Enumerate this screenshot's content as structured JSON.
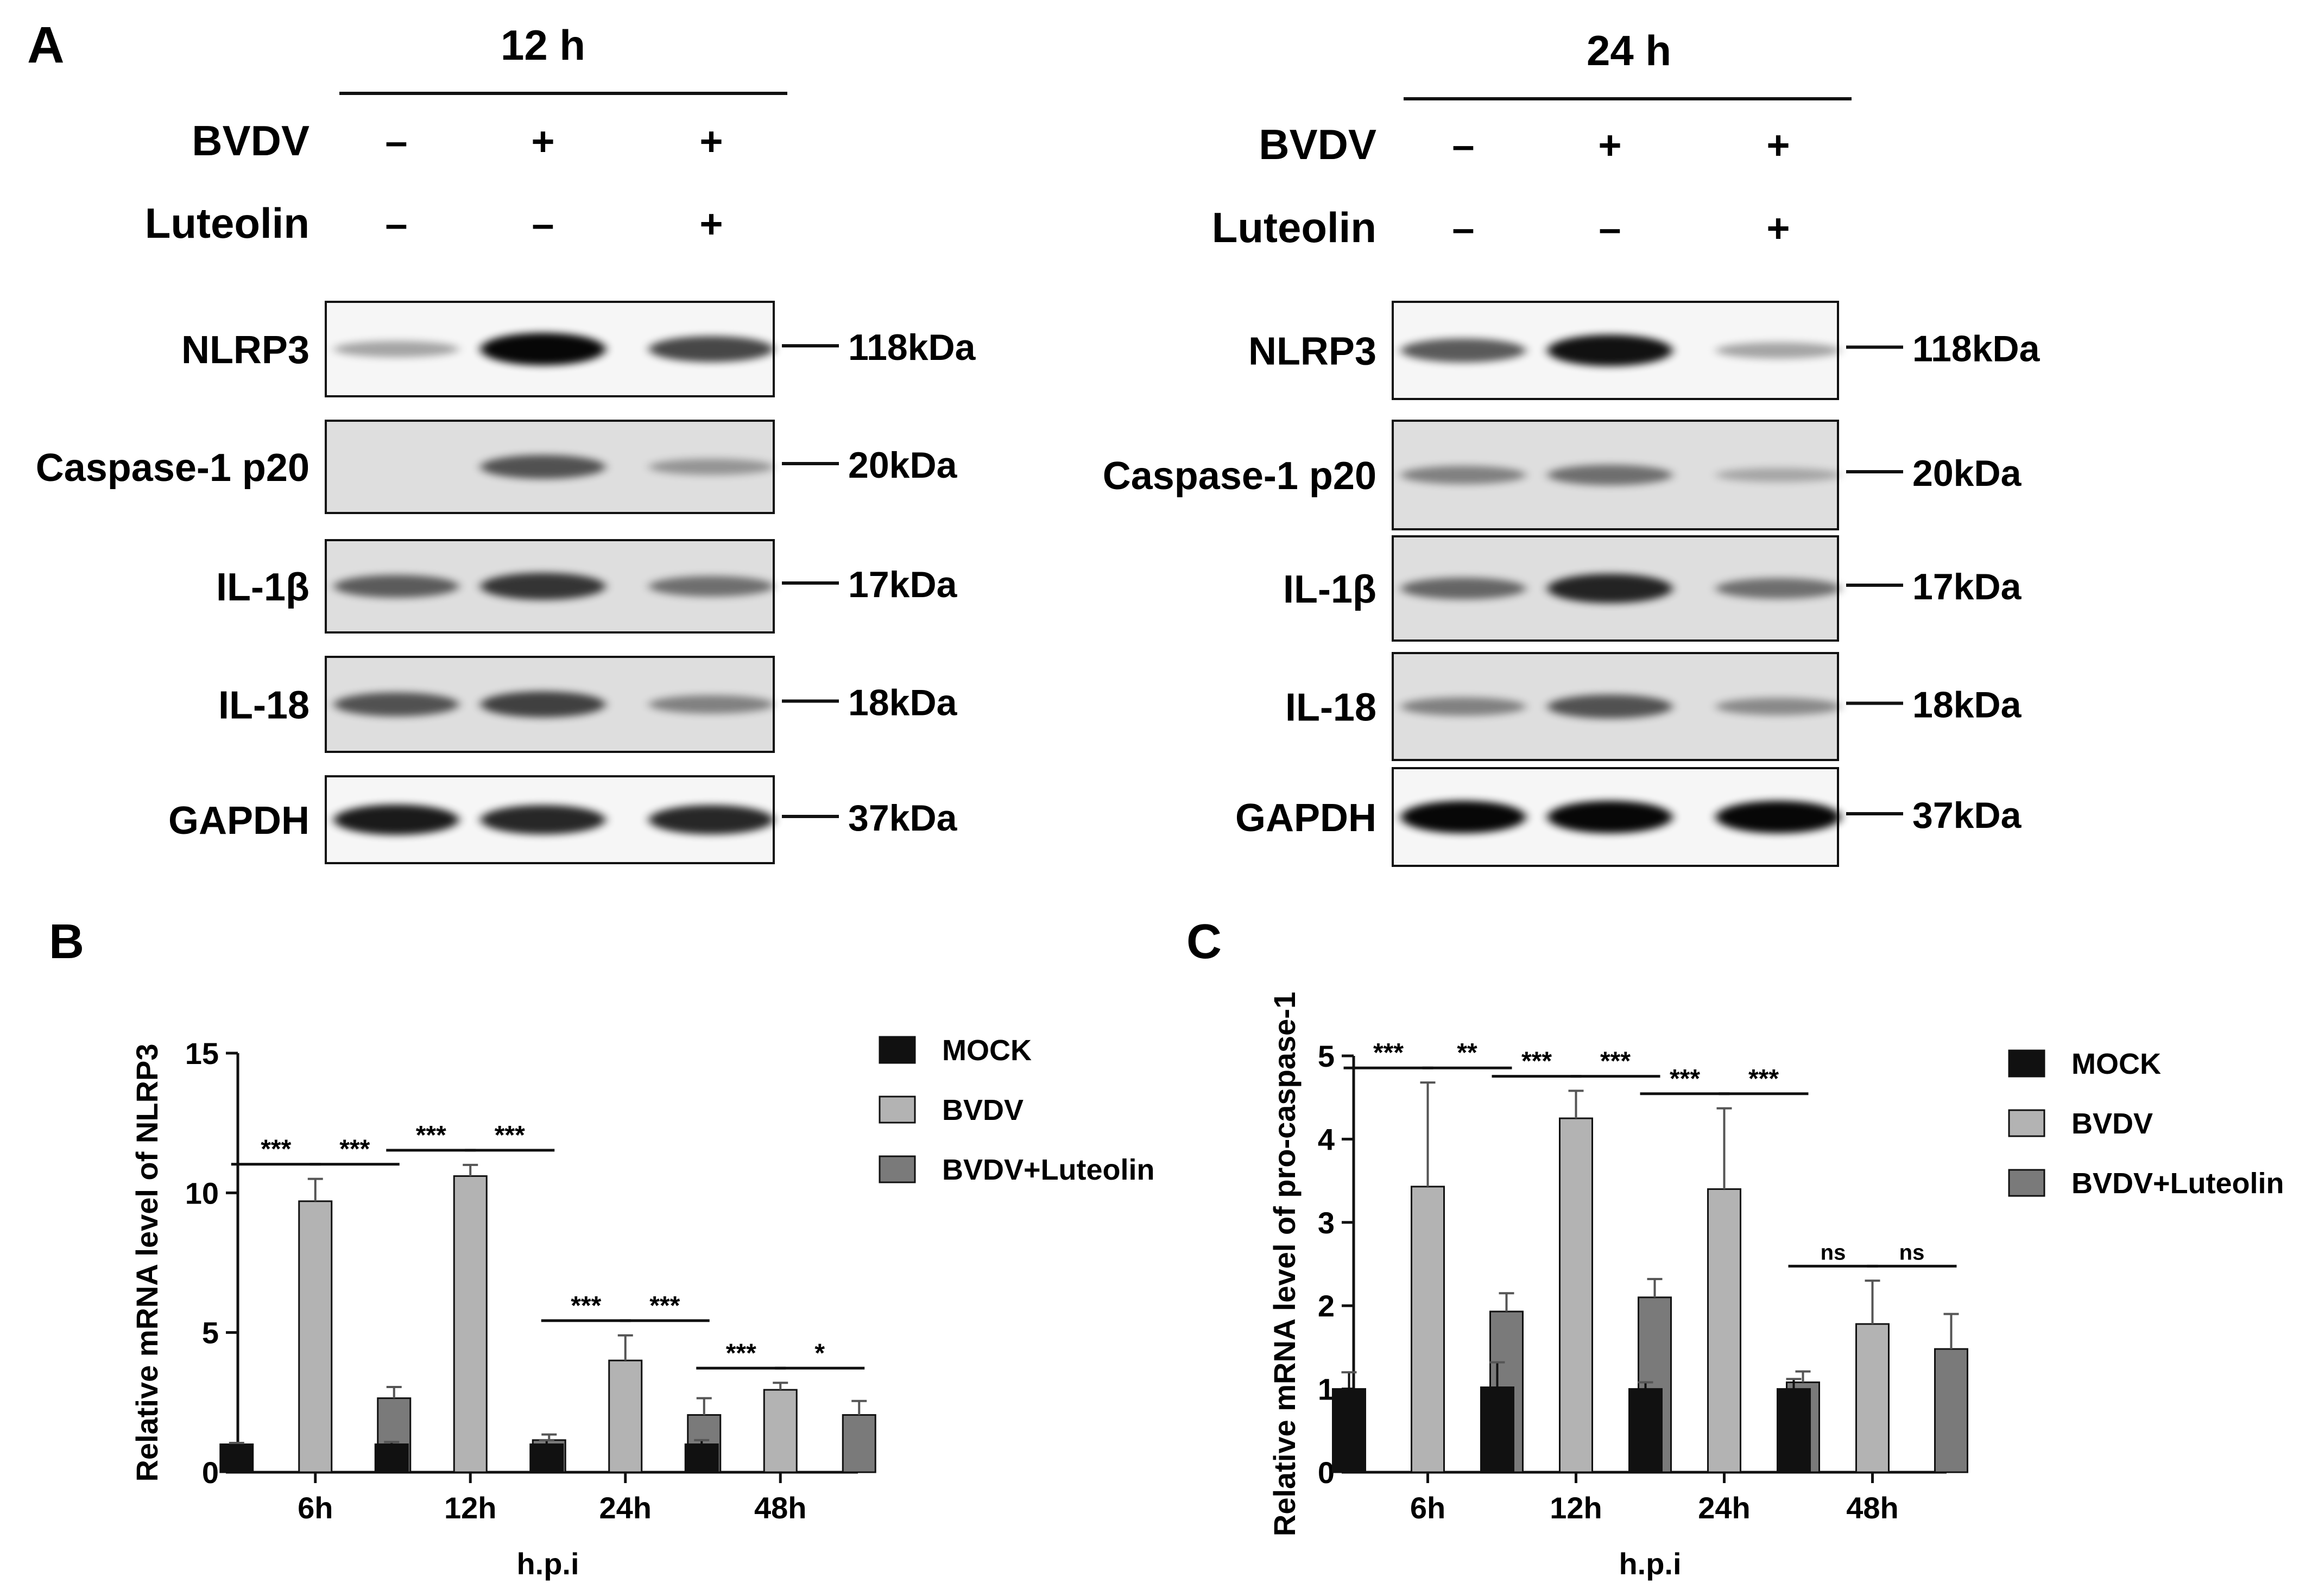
{
  "panelA": {
    "letter": "A",
    "groups": [
      {
        "time": "12 h",
        "rows": [
          {
            "label": "BVDV",
            "signs": [
              "–",
              "+",
              "+"
            ]
          },
          {
            "label": "Luteolin",
            "signs": [
              "–",
              "–",
              "+"
            ]
          }
        ],
        "blots": [
          {
            "protein": "NLRP3",
            "marker": "118kDa",
            "intensity": [
              0.25,
              1.0,
              0.7
            ]
          },
          {
            "protein": "Caspase-1 p20",
            "marker": "20kDa",
            "intensity": [
              0.0,
              0.6,
              0.25
            ]
          },
          {
            "protein": "IL-1β",
            "marker": "17kDa",
            "intensity": [
              0.55,
              0.75,
              0.45
            ]
          },
          {
            "protein": "IL-18",
            "marker": "18kDa",
            "intensity": [
              0.6,
              0.7,
              0.35
            ]
          },
          {
            "protein": "GAPDH",
            "marker": "37kDa",
            "intensity": [
              0.9,
              0.85,
              0.85
            ]
          }
        ]
      },
      {
        "time": "24 h",
        "rows": [
          {
            "label": "BVDV",
            "signs": [
              "–",
              "+",
              "+"
            ]
          },
          {
            "label": "Luteolin",
            "signs": [
              "–",
              "–",
              "+"
            ]
          }
        ],
        "blots": [
          {
            "protein": "NLRP3",
            "marker": "118kDa",
            "intensity": [
              0.6,
              0.95,
              0.25
            ]
          },
          {
            "protein": "Caspase-1 p20",
            "marker": "20kDa",
            "intensity": [
              0.35,
              0.45,
              0.15
            ]
          },
          {
            "protein": "IL-1β",
            "marker": "17kDa",
            "intensity": [
              0.5,
              0.85,
              0.45
            ]
          },
          {
            "protein": "IL-18",
            "marker": "18kDa",
            "intensity": [
              0.35,
              0.6,
              0.3
            ]
          },
          {
            "protein": "GAPDH",
            "marker": "37kDa",
            "intensity": [
              1.0,
              1.0,
              1.0
            ]
          }
        ]
      }
    ]
  },
  "chart_data": [
    {
      "panel": "B",
      "type": "bar",
      "title": "",
      "xlabel": "h.p.i",
      "ylabel": "Relative mRNA level of NLRP3",
      "categories": [
        "6h",
        "12h",
        "24h",
        "48h"
      ],
      "ylim": [
        0,
        15
      ],
      "yticks": [
        0,
        5,
        10,
        15
      ],
      "series": [
        {
          "name": "MOCK",
          "values": [
            1.0,
            1.0,
            1.0,
            1.0
          ],
          "errors": [
            0.05,
            0.08,
            0.15,
            0.15
          ]
        },
        {
          "name": "BVDV",
          "values": [
            9.7,
            10.6,
            4.0,
            2.95
          ],
          "errors": [
            0.8,
            0.4,
            0.9,
            0.25
          ]
        },
        {
          "name": "BVDV+Luteolin",
          "values": [
            2.65,
            1.15,
            2.05,
            2.05
          ],
          "errors": [
            0.4,
            0.2,
            0.6,
            0.5
          ]
        }
      ],
      "significance": [
        {
          "category": 0,
          "pair": [
            0,
            1
          ],
          "label": "***"
        },
        {
          "category": 0,
          "pair": [
            1,
            2
          ],
          "label": "***"
        },
        {
          "category": 1,
          "pair": [
            0,
            1
          ],
          "label": "***"
        },
        {
          "category": 1,
          "pair": [
            1,
            2
          ],
          "label": "***"
        },
        {
          "category": 2,
          "pair": [
            0,
            1
          ],
          "label": "***"
        },
        {
          "category": 2,
          "pair": [
            1,
            2
          ],
          "label": "***"
        },
        {
          "category": 3,
          "pair": [
            0,
            1
          ],
          "label": "***"
        },
        {
          "category": 3,
          "pair": [
            1,
            2
          ],
          "label": "*"
        }
      ],
      "legend": "right",
      "grid": false
    },
    {
      "panel": "C",
      "type": "bar",
      "title": "",
      "xlabel": "h.p.i",
      "ylabel": "Relative mRNA level of pro-caspase-1",
      "categories": [
        "6h",
        "12h",
        "24h",
        "48h"
      ],
      "ylim": [
        0,
        5
      ],
      "yticks": [
        0,
        1,
        2,
        3,
        4,
        5
      ],
      "series": [
        {
          "name": "MOCK",
          "values": [
            1.0,
            1.02,
            1.0,
            1.0
          ],
          "errors": [
            0.2,
            0.3,
            0.08,
            0.12
          ]
        },
        {
          "name": "BVDV",
          "values": [
            3.43,
            4.25,
            3.4,
            1.78
          ],
          "errors": [
            1.25,
            0.33,
            0.97,
            0.52
          ]
        },
        {
          "name": "BVDV+Luteolin",
          "values": [
            1.93,
            2.1,
            1.08,
            1.48
          ],
          "errors": [
            0.22,
            0.22,
            0.13,
            0.42
          ]
        }
      ],
      "significance": [
        {
          "category": 0,
          "pair": [
            0,
            1
          ],
          "label": "***"
        },
        {
          "category": 0,
          "pair": [
            1,
            2
          ],
          "label": "**"
        },
        {
          "category": 1,
          "pair": [
            0,
            1
          ],
          "label": "***"
        },
        {
          "category": 1,
          "pair": [
            1,
            2
          ],
          "label": "***"
        },
        {
          "category": 2,
          "pair": [
            0,
            1
          ],
          "label": "***"
        },
        {
          "category": 2,
          "pair": [
            1,
            2
          ],
          "label": "***"
        },
        {
          "category": 3,
          "pair": [
            0,
            1
          ],
          "label": "ns"
        },
        {
          "category": 3,
          "pair": [
            1,
            2
          ],
          "label": "ns"
        }
      ],
      "legend": "right",
      "grid": false
    }
  ],
  "colors": {
    "MOCK": "#111111",
    "BVDV": "#b3b3b3",
    "BVDV+Luteolin": "#7a7a7a",
    "axis": "#111111"
  }
}
